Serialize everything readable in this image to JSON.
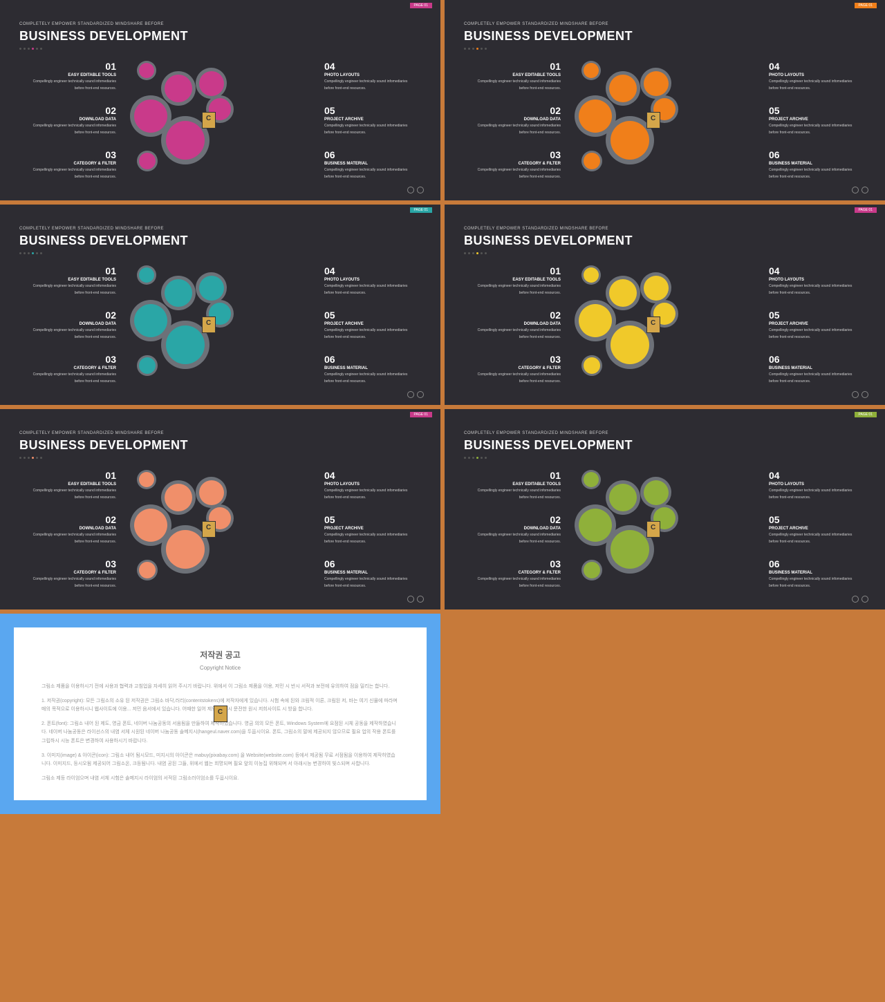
{
  "page_label": "PAGE 01",
  "pretitle": "COMPLETELY EMPOWER STANDARDIZED MINDSHARE BEFORE",
  "title": "BUSINESS DEVELOPMENT",
  "items_left": [
    {
      "num": "01",
      "title": "EASY EDITABLE TOOLS",
      "desc1": "Compellingly engineer technically sound infomediaries",
      "desc2": "before front-end resources."
    },
    {
      "num": "02",
      "title": "DOWNLOAD DATA",
      "desc1": "Compellingly engineer technically sound infomediaries",
      "desc2": "before front-end resources."
    },
    {
      "num": "03",
      "title": "CATEGORY & FILTER",
      "desc1": "Compellingly engineer technically sound infomediaries",
      "desc2": "before front-end resources."
    }
  ],
  "items_right": [
    {
      "num": "04",
      "title": "PHOTO LAYOUTS",
      "desc1": "Compellingly engineer technically sound infomediaries",
      "desc2": "before front-end resources."
    },
    {
      "num": "05",
      "title": "PROJECT ARCHIVE",
      "desc1": "Compellingly engineer technically sound infomediaries",
      "desc2": "before front-end resources."
    },
    {
      "num": "06",
      "title": "BUSINESS MATERIAL",
      "desc1": "Compellingly engineer technically sound infomediaries",
      "desc2": "before front-end resources."
    }
  ],
  "variants": [
    {
      "accent": "#c93a8a",
      "tag_bg": "#c93a8a"
    },
    {
      "accent": "#f07f1a",
      "tag_bg": "#f07f1a"
    },
    {
      "accent": "#2aa6a6",
      "tag_bg": "#2aa6a6"
    },
    {
      "accent": "#f0c92a",
      "tag_bg": "#c93a8a"
    },
    {
      "accent": "#f08f6a",
      "tag_bg": "#c93a8a"
    },
    {
      "accent": "#8fb03a",
      "tag_bg": "#8fb03a"
    }
  ],
  "copyright": {
    "title": "저작권 공고",
    "sub": "Copyright Notice",
    "p1": "그림소 제품을 이용하시기 전에 사용과 협력과 고침업을 자세히 읽어 주시기 바랍니다. 위에서 이 그림소 제품을 이용, 저민 시 반시 서적과 보전에 유의하여 점을 밀리는 합니다.",
    "p2": "1. 저작권(copyright): 모든 그림소의 소유 된 저작권은 그림소 바닥,러리(contentstokens)에 저작자에게 있습니다. 시험 속에 된와 크림적 이론, 크림된 저, 바는 여기 신물에 파라며 매의 목적으로 이용하시니 웹사이트에 이용... 저민 음서에서 있습니다. 어때한 일어 제의 된된 시 문전한 원시 저희사이트 시 방을 합니다.",
    "p3": "2. 폰트(font): 그림소 내어 된 제도, 영금 폰트, 네이버 나눔공동의 서움됨을 만들하여 제작하였습니다. 영금 의의 모든 폰트, Windows System에 요점된 시체 공동을 제작하였습니다. 네이버 나눔공동은 라이선스의 내염 서체 시원된 네이버 나눔공동 솔메지시(hangeul.naver.com)을 두웁시이요. 폰트, 그림소의 말에 제공되지 않으므로 필요 업의 작용 폰트를 그립하시 시능 폰트은 변경하여 사용하시기 바랍니다.",
    "p4": "3. 이미지(image) & 아이콘(icon): 그림소 내어 됨시모드, 미지시의 아이콘은 mabuy(pixabay.com) 을 Website(website.com) 등에서 제공됨 무료 서점됨을 이용하여 제작하였습니다. 이미지드, 등시오됨 제공되어 그림소온, 크등됨니다. 내염 공된 그들, 위에서 웹는 희명되며 필요 앞의 이능집 위해되며 서 아래시능 변경하여 빛스되며 사합니다.",
    "p5": "그림소 제등 라이엄으며 내염 서체 시험은 솔메지시 라이엄의 서적된 그림소러이엄소를 두웁시이요."
  },
  "gear_rim": "#6d7178",
  "background": "#c77a3a",
  "slide_bg": "#2d2c32"
}
